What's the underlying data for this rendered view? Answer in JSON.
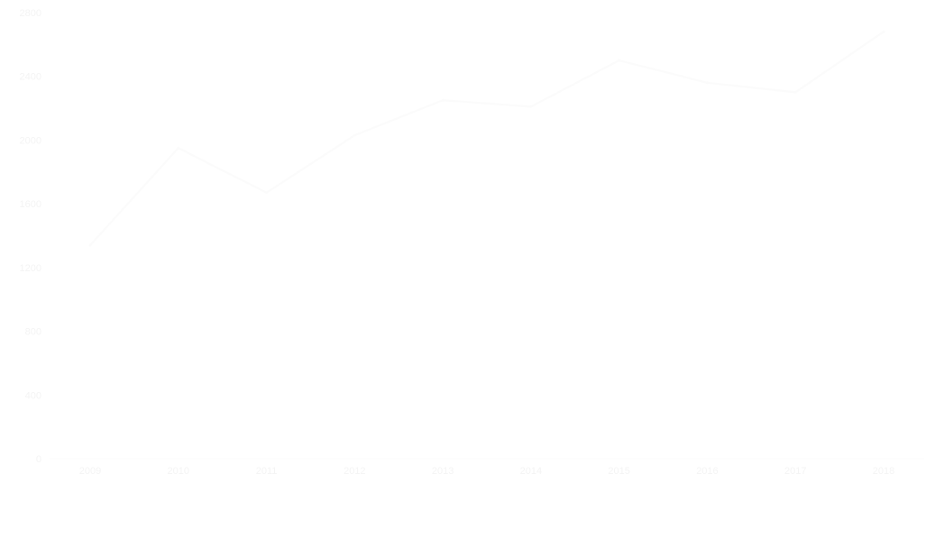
{
  "chart_data": {
    "type": "line",
    "categories": [
      "2009",
      "2010",
      "2011",
      "2012",
      "2013",
      "2014",
      "2015",
      "2016",
      "2017",
      "2018"
    ],
    "series": [
      {
        "values": [
          1340,
          1950,
          1670,
          2030,
          2250,
          2210,
          2500,
          2360,
          2300,
          2680
        ]
      }
    ],
    "yticks": [
      0,
      400,
      800,
      1200,
      1600,
      2000,
      2400,
      2800
    ],
    "ylim": [
      0,
      2800
    ],
    "grid": false,
    "colors": {
      "line": "#fbfbfb",
      "axis": "#fbfbfb",
      "text": "#f4f4f4",
      "background": "#ffffff"
    }
  }
}
